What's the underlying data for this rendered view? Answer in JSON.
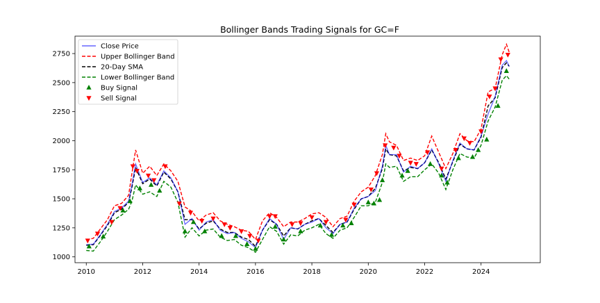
{
  "chart_data": {
    "type": "line",
    "title": "Bollinger Bands Trading Signals for GC=F",
    "xlabel": "",
    "ylabel": "",
    "xlim": [
      2009.6,
      2026.1
    ],
    "ylim": [
      950,
      2900
    ],
    "x_ticks": [
      2010,
      2012,
      2014,
      2016,
      2018,
      2020,
      2022,
      2024
    ],
    "x_tick_labels": [
      "2010",
      "2012",
      "2014",
      "2016",
      "2018",
      "2020",
      "2022",
      "2024"
    ],
    "y_ticks": [
      1000,
      1250,
      1500,
      1750,
      2000,
      2250,
      2500,
      2750
    ],
    "y_tick_labels": [
      "1000",
      "1250",
      "1500",
      "1750",
      "2000",
      "2250",
      "2500",
      "2750"
    ],
    "grid": false,
    "legend_position": "upper-left",
    "x": [
      2010.0,
      2010.25,
      2010.5,
      2010.75,
      2011.0,
      2011.25,
      2011.5,
      2011.62,
      2011.75,
      2012.0,
      2012.25,
      2012.5,
      2012.75,
      2013.0,
      2013.25,
      2013.5,
      2013.75,
      2014.0,
      2014.25,
      2014.5,
      2014.75,
      2015.0,
      2015.25,
      2015.5,
      2015.75,
      2016.0,
      2016.25,
      2016.5,
      2016.75,
      2017.0,
      2017.25,
      2017.5,
      2017.75,
      2018.0,
      2018.25,
      2018.5,
      2018.75,
      2019.0,
      2019.25,
      2019.5,
      2019.75,
      2020.0,
      2020.25,
      2020.5,
      2020.62,
      2020.75,
      2021.0,
      2021.25,
      2021.5,
      2021.75,
      2022.0,
      2022.25,
      2022.5,
      2022.75,
      2023.0,
      2023.25,
      2023.5,
      2023.75,
      2024.0,
      2024.25,
      2024.5,
      2024.75,
      2024.9,
      2025.0
    ],
    "series": [
      {
        "name": "Close Price",
        "style": "solid",
        "color": "#0000ff",
        "values": [
          1105,
          1110,
          1190,
          1280,
          1390,
          1420,
          1480,
          1620,
          1800,
          1640,
          1680,
          1620,
          1740,
          1680,
          1560,
          1280,
          1330,
          1230,
          1300,
          1320,
          1230,
          1200,
          1210,
          1160,
          1130,
          1080,
          1230,
          1330,
          1280,
          1150,
          1250,
          1240,
          1280,
          1300,
          1330,
          1250,
          1200,
          1280,
          1300,
          1420,
          1500,
          1520,
          1570,
          1780,
          1960,
          1880,
          1880,
          1730,
          1780,
          1760,
          1810,
          1930,
          1800,
          1650,
          1830,
          1980,
          1930,
          1920,
          2040,
          2230,
          2380,
          2650,
          2690,
          2640
        ]
      },
      {
        "name": "Upper Bollinger Band",
        "style": "dashed",
        "color": "#ff0000",
        "values": [
          1145,
          1160,
          1240,
          1320,
          1440,
          1460,
          1530,
          1720,
          1920,
          1720,
          1780,
          1700,
          1800,
          1740,
          1650,
          1430,
          1390,
          1310,
          1360,
          1380,
          1310,
          1280,
          1260,
          1230,
          1220,
          1150,
          1310,
          1380,
          1340,
          1260,
          1300,
          1300,
          1330,
          1370,
          1380,
          1340,
          1260,
          1330,
          1350,
          1480,
          1560,
          1600,
          1700,
          1880,
          2060,
          1990,
          1960,
          1830,
          1850,
          1830,
          1870,
          2040,
          1900,
          1760,
          1890,
          2060,
          2000,
          1990,
          2100,
          2420,
          2450,
          2740,
          2830,
          2760
        ]
      },
      {
        "name": "20-Day SMA",
        "style": "dashed",
        "color": "#000000",
        "values": [
          1100,
          1105,
          1185,
          1270,
          1380,
          1410,
          1470,
          1600,
          1770,
          1630,
          1670,
          1610,
          1730,
          1670,
          1560,
          1320,
          1320,
          1240,
          1290,
          1310,
          1240,
          1210,
          1210,
          1170,
          1150,
          1090,
          1230,
          1320,
          1280,
          1180,
          1250,
          1240,
          1280,
          1310,
          1330,
          1270,
          1210,
          1280,
          1300,
          1410,
          1500,
          1520,
          1590,
          1760,
          1930,
          1880,
          1870,
          1740,
          1770,
          1760,
          1810,
          1920,
          1810,
          1670,
          1820,
          1970,
          1930,
          1920,
          2030,
          2300,
          2370,
          2630,
          2670,
          2640
        ]
      },
      {
        "name": "Lower Bollinger Band",
        "style": "dashed",
        "color": "#008000",
        "values": [
          1055,
          1050,
          1130,
          1220,
          1320,
          1360,
          1410,
          1480,
          1620,
          1540,
          1560,
          1520,
          1650,
          1600,
          1470,
          1170,
          1250,
          1180,
          1230,
          1240,
          1170,
          1140,
          1150,
          1100,
          1080,
          1040,
          1150,
          1260,
          1220,
          1110,
          1190,
          1180,
          1230,
          1250,
          1280,
          1200,
          1160,
          1230,
          1250,
          1340,
          1440,
          1440,
          1470,
          1640,
          1800,
          1770,
          1780,
          1650,
          1690,
          1690,
          1750,
          1800,
          1720,
          1580,
          1750,
          1890,
          1860,
          1850,
          1960,
          2170,
          2290,
          2520,
          2560,
          2530
        ]
      }
    ],
    "buy_signals": {
      "name": "Buy Signal",
      "marker": "triangle-up",
      "color": "#008000",
      "points": [
        [
          2010.1,
          1090
        ],
        [
          2010.6,
          1175
        ],
        [
          2011.3,
          1400
        ],
        [
          2011.55,
          1480
        ],
        [
          2011.9,
          1590
        ],
        [
          2012.3,
          1620
        ],
        [
          2012.6,
          1570
        ],
        [
          2013.5,
          1220
        ],
        [
          2013.8,
          1300
        ],
        [
          2014.2,
          1220
        ],
        [
          2014.8,
          1180
        ],
        [
          2015.3,
          1180
        ],
        [
          2015.7,
          1110
        ],
        [
          2016.0,
          1070
        ],
        [
          2016.7,
          1260
        ],
        [
          2017.0,
          1150
        ],
        [
          2017.6,
          1220
        ],
        [
          2018.3,
          1270
        ],
        [
          2018.7,
          1190
        ],
        [
          2019.1,
          1270
        ],
        [
          2019.4,
          1290
        ],
        [
          2020.0,
          1470
        ],
        [
          2020.2,
          1460
        ],
        [
          2020.4,
          1490
        ],
        [
          2020.5,
          1660
        ],
        [
          2021.2,
          1700
        ],
        [
          2021.4,
          1740
        ],
        [
          2022.2,
          1800
        ],
        [
          2022.6,
          1700
        ],
        [
          2022.8,
          1640
        ],
        [
          2023.2,
          1850
        ],
        [
          2023.7,
          1860
        ],
        [
          2023.9,
          1920
        ],
        [
          2024.2,
          2010
        ],
        [
          2024.6,
          2300
        ],
        [
          2024.9,
          2600
        ]
      ]
    },
    "sell_signals": {
      "name": "Sell Signal",
      "marker": "triangle-down",
      "color": "#ff0000",
      "points": [
        [
          2010.05,
          1140
        ],
        [
          2010.4,
          1200
        ],
        [
          2010.9,
          1300
        ],
        [
          2011.2,
          1420
        ],
        [
          2011.65,
          1780
        ],
        [
          2011.8,
          1740
        ],
        [
          2012.2,
          1700
        ],
        [
          2012.4,
          1660
        ],
        [
          2012.8,
          1780
        ],
        [
          2013.3,
          1460
        ],
        [
          2013.7,
          1380
        ],
        [
          2014.1,
          1310
        ],
        [
          2014.5,
          1330
        ],
        [
          2014.9,
          1280
        ],
        [
          2015.1,
          1250
        ],
        [
          2015.5,
          1220
        ],
        [
          2015.8,
          1180
        ],
        [
          2016.1,
          1140
        ],
        [
          2016.5,
          1350
        ],
        [
          2016.7,
          1350
        ],
        [
          2017.3,
          1280
        ],
        [
          2017.6,
          1290
        ],
        [
          2018.0,
          1340
        ],
        [
          2018.5,
          1300
        ],
        [
          2019.2,
          1320
        ],
        [
          2019.5,
          1450
        ],
        [
          2020.1,
          1580
        ],
        [
          2020.3,
          1720
        ],
        [
          2020.6,
          1960
        ],
        [
          2020.9,
          1940
        ],
        [
          2021.1,
          1870
        ],
        [
          2021.5,
          1810
        ],
        [
          2021.7,
          1800
        ],
        [
          2022.1,
          1900
        ],
        [
          2022.6,
          1760
        ],
        [
          2023.1,
          1920
        ],
        [
          2023.4,
          2020
        ],
        [
          2023.6,
          1980
        ],
        [
          2024.0,
          2080
        ],
        [
          2024.3,
          2380
        ],
        [
          2024.5,
          2450
        ],
        [
          2024.7,
          2700
        ],
        [
          2024.95,
          2740
        ]
      ]
    },
    "legend_labels": [
      "Close Price",
      "Upper Bollinger Band",
      "20-Day SMA",
      "Lower Bollinger Band",
      "Buy Signal",
      "Sell Signal"
    ]
  }
}
